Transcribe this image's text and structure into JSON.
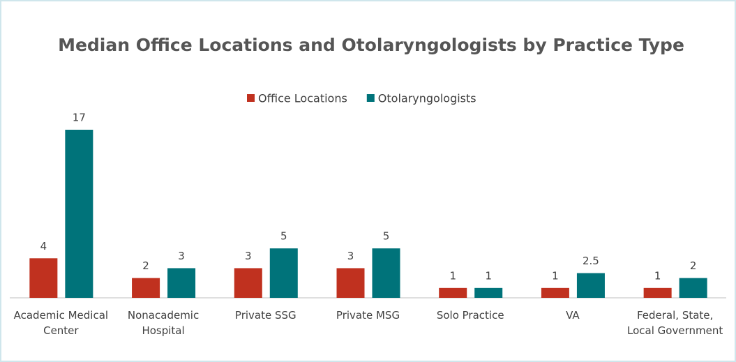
{
  "chart_data": {
    "type": "bar",
    "title": "Median Office Locations and Otolaryngologists by Practice Type",
    "categories": [
      "Academic Medical\nCenter",
      "Nonacademic\nHospital",
      "Private SSG",
      "Private MSG",
      "Solo Practice",
      "VA",
      "Federal, State,\nLocal Government"
    ],
    "series": [
      {
        "name": "Office Locations",
        "color": "#c0311f",
        "values": [
          4,
          2,
          3,
          3,
          1,
          1,
          1
        ]
      },
      {
        "name": "Otolaryngologists",
        "color": "#00737a",
        "values": [
          17,
          3,
          5,
          5,
          1,
          2.5,
          2
        ]
      }
    ],
    "legend": "top"
  }
}
